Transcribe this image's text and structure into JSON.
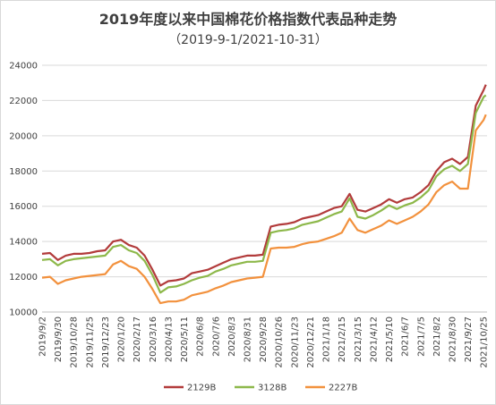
{
  "chart_data": {
    "type": "line",
    "title": "2019年度以来中国棉花价格指数代表品种走势",
    "subtitle": "（2019-9-1/2021-10-31）",
    "xlabel": "",
    "ylabel": "",
    "ylim": [
      10000,
      24000
    ],
    "yticks": [
      "24000",
      "22000",
      "20000",
      "18000",
      "16000",
      "14000",
      "12000",
      "10000"
    ],
    "grid": "horizontal",
    "legend_position": "bottom",
    "x_tick_labels": [
      "2019/9/2",
      "2019/9/30",
      "2019/10/28",
      "2019/11/25",
      "2019/12/23",
      "2020/1/20",
      "2020/2/17",
      "2020/3/16",
      "2020/4/13",
      "2020/5/11",
      "2020/6/8",
      "2020/7/6",
      "2020/8/3",
      "2020/8/31",
      "2020/9/28",
      "2020/10/26",
      "2020/11/23",
      "2020/12/21",
      "2021/1/18",
      "2021/2/15",
      "2021/3/15",
      "2021/4/12",
      "2021/5/10",
      "2021/6/7",
      "2021/7/5",
      "2021/8/2",
      "2021/8/30",
      "2021/9/27",
      "2021/10/25"
    ],
    "x": [
      "2019-09-02",
      "2019-09-16",
      "2019-09-30",
      "2019-10-14",
      "2019-10-28",
      "2019-11-11",
      "2019-11-25",
      "2019-12-09",
      "2019-12-23",
      "2020-01-06",
      "2020-01-20",
      "2020-02-03",
      "2020-02-17",
      "2020-03-02",
      "2020-03-16",
      "2020-03-30",
      "2020-04-13",
      "2020-04-27",
      "2020-05-11",
      "2020-05-25",
      "2020-06-08",
      "2020-06-22",
      "2020-07-06",
      "2020-07-20",
      "2020-08-03",
      "2020-08-17",
      "2020-08-31",
      "2020-09-14",
      "2020-09-28",
      "2020-10-12",
      "2020-10-26",
      "2020-11-09",
      "2020-11-23",
      "2020-12-07",
      "2020-12-21",
      "2021-01-04",
      "2021-01-18",
      "2021-02-01",
      "2021-02-15",
      "2021-03-01",
      "2021-03-15",
      "2021-03-29",
      "2021-04-12",
      "2021-04-26",
      "2021-05-10",
      "2021-05-24",
      "2021-06-07",
      "2021-06-21",
      "2021-07-05",
      "2021-07-19",
      "2021-08-02",
      "2021-08-16",
      "2021-08-30",
      "2021-09-13",
      "2021-09-27",
      "2021-10-11",
      "2021-10-25",
      "2021-10-29"
    ],
    "series": [
      {
        "name": "2129B",
        "color": "#b23b3b",
        "values": [
          13300,
          13350,
          12950,
          13200,
          13300,
          13300,
          13350,
          13450,
          13500,
          14000,
          14100,
          13800,
          13650,
          13200,
          12400,
          11500,
          11750,
          11800,
          11900,
          12200,
          12300,
          12400,
          12600,
          12800,
          13000,
          13100,
          13200,
          13200,
          13250,
          14850,
          14950,
          15000,
          15100,
          15300,
          15400,
          15500,
          15700,
          15900,
          16000,
          16700,
          15800,
          15700,
          15900,
          16100,
          16400,
          16200,
          16400,
          16500,
          16800,
          17200,
          18000,
          18500,
          18700,
          18400,
          18800,
          21700,
          22600,
          22900
        ]
      },
      {
        "name": "3128B",
        "color": "#8db84a",
        "values": [
          12950,
          13000,
          12650,
          12900,
          13000,
          13050,
          13100,
          13150,
          13200,
          13700,
          13800,
          13500,
          13350,
          12900,
          12100,
          11100,
          11400,
          11450,
          11600,
          11800,
          11950,
          12050,
          12300,
          12450,
          12650,
          12750,
          12850,
          12850,
          12900,
          14500,
          14600,
          14650,
          14750,
          14950,
          15050,
          15150,
          15350,
          15550,
          15700,
          16450,
          15400,
          15300,
          15500,
          15750,
          16050,
          15850,
          16050,
          16200,
          16500,
          16900,
          17700,
          18100,
          18300,
          18000,
          18400,
          21300,
          22200,
          22300
        ]
      },
      {
        "name": "2227B",
        "color": "#f2913d",
        "values": [
          11950,
          12000,
          11600,
          11800,
          11900,
          12000,
          12050,
          12100,
          12150,
          12700,
          12900,
          12600,
          12450,
          12000,
          11300,
          10500,
          10600,
          10600,
          10700,
          10950,
          11050,
          11150,
          11350,
          11500,
          11700,
          11800,
          11900,
          11950,
          12000,
          13600,
          13650,
          13650,
          13700,
          13850,
          13950,
          14000,
          14150,
          14300,
          14500,
          15300,
          14650,
          14500,
          14700,
          14900,
          15200,
          15000,
          15200,
          15400,
          15700,
          16100,
          16800,
          17200,
          17400,
          17000,
          17000,
          20300,
          20900,
          21200
        ]
      }
    ]
  }
}
